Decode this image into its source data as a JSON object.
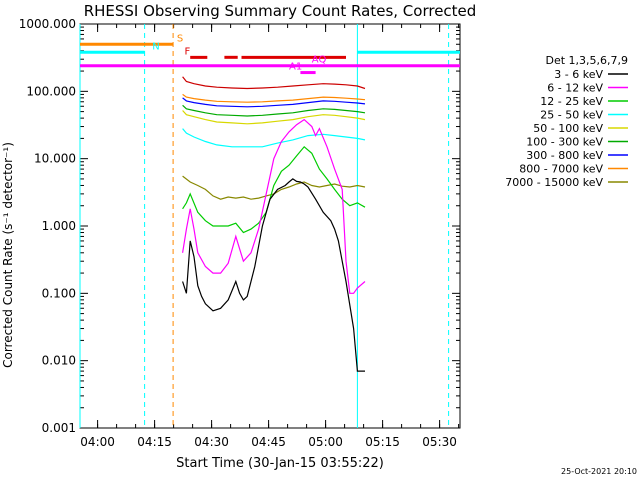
{
  "chart_data": {
    "type": "line",
    "title": "RHESSI Observing Summary Count Rates, Corrected",
    "xlabel": "Start Time (30-Jan-15 03:55:22)",
    "ylabel": "Corrected Count Rate (s⁻¹ detector⁻¹)",
    "yscale": "log",
    "ylim": [
      0.001,
      1000
    ],
    "xlim_minutes_since_0355": [
      0,
      100
    ],
    "x_ticks": [
      "04:00",
      "04:15",
      "04:30",
      "04:45",
      "05:00",
      "05:15",
      "05:30"
    ],
    "y_ticks": [
      "0.001",
      "0.010",
      "0.100",
      "1.000",
      "10.000",
      "100.000",
      "1000.000"
    ],
    "legend_title": "Det 1,3,5,6,7,9",
    "legend_placement": "right",
    "footer_date": "25-Oct-2021 20:10",
    "series": [
      {
        "name": "3 - 6 keV",
        "color": "#000000",
        "x": [
          27,
          28,
          29,
          30,
          31,
          32,
          33,
          35,
          37,
          39,
          41,
          42,
          43,
          44,
          46,
          48,
          50,
          52,
          54,
          55,
          56,
          57,
          58,
          59,
          60,
          62,
          64,
          66,
          67,
          68,
          70,
          72,
          73,
          74,
          75
        ],
        "y": [
          0.15,
          0.1,
          0.6,
          0.35,
          0.13,
          0.09,
          0.07,
          0.055,
          0.06,
          0.08,
          0.15,
          0.1,
          0.08,
          0.09,
          0.25,
          1.0,
          2.5,
          3.5,
          4.0,
          4.5,
          5.0,
          4.6,
          4.5,
          4.2,
          3.8,
          2.5,
          1.6,
          1.2,
          0.9,
          0.6,
          0.15,
          0.03,
          0.007,
          0.007,
          0.007
        ]
      },
      {
        "name": "6 - 12 keV",
        "color": "#ff00ff",
        "x": [
          27,
          28,
          29,
          30,
          31,
          33,
          35,
          37,
          39,
          41,
          43,
          45,
          47,
          49,
          51,
          53,
          55,
          57,
          59,
          61,
          62,
          63,
          65,
          67,
          69,
          70,
          71,
          72,
          73,
          75
        ],
        "y": [
          0.4,
          0.9,
          1.8,
          0.9,
          0.4,
          0.25,
          0.2,
          0.2,
          0.28,
          0.7,
          0.3,
          0.4,
          0.9,
          3.0,
          10,
          18,
          25,
          32,
          38,
          30,
          22,
          28,
          15,
          7,
          3.5,
          0.3,
          0.1,
          0.1,
          0.12,
          0.15
        ]
      },
      {
        "name": "12 - 25 keV",
        "color": "#00cc00",
        "x": [
          27,
          28,
          29,
          31,
          33,
          35,
          37,
          39,
          41,
          43,
          45,
          47,
          49,
          51,
          53,
          55,
          57,
          59,
          61,
          63,
          65,
          67,
          69,
          71,
          73,
          75
        ],
        "y": [
          1.8,
          2.2,
          3.0,
          1.6,
          1.2,
          1.0,
          1.0,
          1.0,
          1.1,
          0.8,
          0.9,
          1.1,
          1.6,
          4,
          6.5,
          8,
          11,
          15,
          12,
          7,
          5,
          3.5,
          2.5,
          2.0,
          2.2,
          1.9
        ]
      },
      {
        "name": "25 - 50 keV",
        "color": "#00ffff",
        "x": [
          27,
          28,
          30,
          33,
          36,
          40,
          44,
          48,
          52,
          56,
          60,
          64,
          67,
          70,
          73,
          75
        ],
        "y": [
          28,
          24,
          21,
          18,
          16,
          15,
          15,
          15,
          17,
          19,
          22,
          23,
          22,
          21,
          20,
          19
        ]
      },
      {
        "name": "50 - 100 keV",
        "color": "#d8d800",
        "x": [
          27,
          28,
          30,
          33,
          36,
          40,
          44,
          48,
          52,
          56,
          60,
          64,
          67,
          70,
          73,
          75
        ],
        "y": [
          52,
          45,
          42,
          38,
          35,
          34,
          33,
          34,
          36,
          38,
          42,
          45,
          44,
          42,
          40,
          38
        ]
      },
      {
        "name": "100 - 300 keV",
        "color": "#00aa00",
        "x": [
          27,
          28,
          30,
          33,
          36,
          40,
          44,
          48,
          52,
          56,
          60,
          64,
          67,
          70,
          73,
          75
        ],
        "y": [
          62,
          55,
          52,
          48,
          45,
          44,
          43,
          44,
          46,
          48,
          52,
          55,
          54,
          52,
          50,
          48
        ]
      },
      {
        "name": "300 - 800 keV",
        "color": "#0000ff",
        "x": [
          27,
          28,
          30,
          33,
          36,
          40,
          44,
          48,
          52,
          56,
          60,
          64,
          67,
          70,
          73,
          75
        ],
        "y": [
          80,
          72,
          68,
          64,
          61,
          60,
          59,
          60,
          62,
          64,
          68,
          72,
          71,
          69,
          67,
          65
        ]
      },
      {
        "name": "800 - 7000 keV",
        "color": "#ff8800",
        "x": [
          27,
          28,
          30,
          33,
          36,
          40,
          44,
          48,
          52,
          56,
          60,
          64,
          67,
          70,
          73,
          75
        ],
        "y": [
          90,
          82,
          78,
          74,
          71,
          70,
          69,
          70,
          72,
          74,
          78,
          82,
          81,
          79,
          77,
          75
        ]
      },
      {
        "name": "7000 - 15000 keV",
        "color": "#888800",
        "x": [
          27,
          29,
          31,
          33,
          35,
          37,
          39,
          41,
          43,
          45,
          47,
          49,
          51,
          53,
          55,
          57,
          59,
          61,
          63,
          65,
          67,
          69,
          71,
          73,
          75
        ],
        "y": [
          5.5,
          4.5,
          4.0,
          3.5,
          2.8,
          2.5,
          2.7,
          2.6,
          2.7,
          2.5,
          2.6,
          2.8,
          3.0,
          3.5,
          3.8,
          4.2,
          4.5,
          4.0,
          3.8,
          4.0,
          4.2,
          3.9,
          3.8,
          4.0,
          3.8
        ]
      }
    ],
    "extra_trace": {
      "color": "#cc0000",
      "x": [
        27,
        28,
        30,
        33,
        36,
        40,
        44,
        48,
        52,
        56,
        60,
        64,
        67,
        70,
        73,
        75
      ],
      "y": [
        165,
        140,
        130,
        120,
        115,
        112,
        110,
        112,
        115,
        120,
        125,
        130,
        128,
        125,
        120,
        110
      ]
    },
    "flags": [
      {
        "label": "S",
        "color": "#ff8800",
        "y_value": 500,
        "segments": [
          [
            0,
            24.5
          ]
        ],
        "label_x": 25.5
      },
      {
        "label": "N",
        "color": "#00ffff",
        "y_value": 380,
        "segments": [
          [
            0,
            17
          ],
          [
            73,
            100
          ]
        ],
        "label_x": 19
      },
      {
        "label": "F",
        "color": "#dd0000",
        "y_value": 320,
        "segments": [
          [
            29,
            33.5
          ],
          [
            38,
            41.5
          ],
          [
            42.5,
            70
          ]
        ],
        "label_x": 27.5
      },
      {
        "label": "AQ",
        "color": "#ff00ff",
        "y_value": 240,
        "segments": [
          [
            0,
            100
          ]
        ],
        "label_x": 61
      },
      {
        "label": "A1",
        "color": "#ff00ff",
        "y_value": 190,
        "segments": [
          [
            58,
            62
          ]
        ],
        "label_x": 55
      }
    ],
    "vertical_markers": [
      {
        "x": 0,
        "color": "#00ffff",
        "style": "solid"
      },
      {
        "x": 17,
        "color": "#00ffff",
        "style": "dashed"
      },
      {
        "x": 24.5,
        "color": "#ff8800",
        "style": "dashed"
      },
      {
        "x": 73,
        "color": "#00ffff",
        "style": "solid"
      },
      {
        "x": 97,
        "color": "#00ffff",
        "style": "dashed"
      }
    ]
  }
}
